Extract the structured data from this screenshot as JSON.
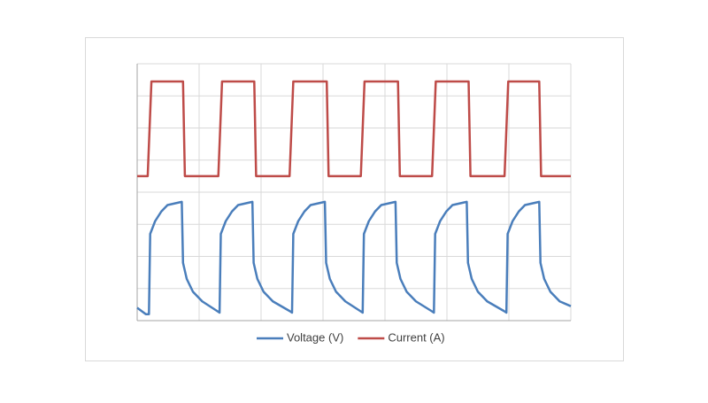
{
  "chart_data": {
    "type": "line",
    "xlim": [
      0,
      70
    ],
    "xticks": [
      0,
      10,
      20,
      30,
      40,
      50,
      60,
      70
    ],
    "ylim": [
      0,
      8
    ],
    "yticks": [
      0,
      1,
      2,
      3,
      4,
      5,
      6,
      7,
      8
    ],
    "grid": true,
    "legend": "bottom",
    "series": [
      {
        "name": "Voltage (V)",
        "color": "#4a7ebb",
        "x": [
          0,
          1.4,
          1.9,
          2.1,
          2.9,
          3.9,
          4.9,
          7.2,
          7.4,
          8.0,
          9.0,
          10.5,
          12.9,
          13.3,
          13.5,
          14.3,
          15.3,
          16.3,
          18.6,
          18.8,
          19.4,
          20.4,
          21.9,
          24.6,
          25.0,
          25.2,
          26.0,
          27.0,
          28.0,
          30.3,
          30.5,
          31.1,
          32.1,
          33.6,
          36.0,
          36.4,
          36.6,
          37.4,
          38.4,
          39.4,
          41.7,
          41.9,
          42.5,
          43.5,
          45.0,
          47.5,
          47.9,
          48.1,
          48.9,
          49.9,
          50.9,
          53.2,
          53.4,
          54.0,
          55.0,
          56.5,
          59.2,
          59.6,
          59.8,
          60.6,
          61.6,
          62.6,
          64.9,
          65.1,
          65.7,
          66.7,
          68.2,
          70
        ],
        "values": [
          0.4,
          0.2,
          0.2,
          2.7,
          3.1,
          3.4,
          3.6,
          3.7,
          1.8,
          1.3,
          0.9,
          0.6,
          0.3,
          0.25,
          2.7,
          3.1,
          3.4,
          3.6,
          3.7,
          1.8,
          1.3,
          0.9,
          0.6,
          0.3,
          0.25,
          2.7,
          3.1,
          3.4,
          3.6,
          3.7,
          1.8,
          1.3,
          0.9,
          0.6,
          0.3,
          0.25,
          2.7,
          3.1,
          3.4,
          3.6,
          3.7,
          1.8,
          1.3,
          0.9,
          0.6,
          0.3,
          0.25,
          2.7,
          3.1,
          3.4,
          3.6,
          3.7,
          1.8,
          1.3,
          0.9,
          0.6,
          0.3,
          0.25,
          2.7,
          3.1,
          3.4,
          3.6,
          3.7,
          1.8,
          1.3,
          0.9,
          0.6,
          0.45
        ]
      },
      {
        "name": "Current (A)",
        "color": "#be4b48",
        "x": [
          0,
          1.7,
          2.3,
          7.4,
          7.7,
          13.1,
          13.7,
          18.9,
          19.2,
          24.6,
          25.2,
          30.6,
          30.9,
          36.1,
          36.7,
          42.1,
          42.4,
          47.6,
          48.2,
          53.5,
          53.8,
          59.3,
          59.9,
          64.9,
          65.2,
          70
        ],
        "values": [
          4.5,
          4.5,
          7.45,
          7.45,
          4.5,
          4.5,
          7.45,
          7.45,
          4.5,
          4.5,
          7.45,
          7.45,
          4.5,
          4.5,
          7.45,
          7.45,
          4.5,
          4.5,
          7.45,
          7.45,
          4.5,
          4.5,
          7.45,
          7.45,
          4.5,
          4.5
        ]
      }
    ]
  }
}
